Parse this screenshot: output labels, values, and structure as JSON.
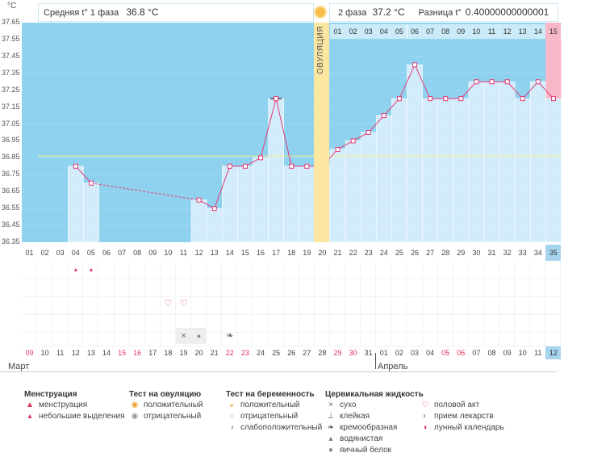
{
  "unit_label": "°C",
  "header": {
    "phase1_label": "Средняя t° 1 фаза",
    "phase1_value": "36.8 °C",
    "phase2_label": "2 фаза",
    "phase2_value": "37.2 °C",
    "diff_label": "Разница t°",
    "diff_value": "0.40000000000001 °C",
    "ovulation_label": "ОВУЛЯЦИЯ"
  },
  "chart_data": {
    "type": "line",
    "title": "Базальная температура",
    "ylabel": "°C",
    "ylim": [
      36.35,
      37.65
    ],
    "yticks": [
      "37.65",
      "37.55",
      "37.45",
      "37.35",
      "37.25",
      "37.15",
      "37.05",
      "36.95",
      "36.85",
      "36.75",
      "36.65",
      "36.55",
      "36.45",
      "36.35"
    ],
    "cycle_days": [
      "01",
      "02",
      "03",
      "04",
      "05",
      "06",
      "07",
      "08",
      "09",
      "10",
      "11",
      "12",
      "13",
      "14",
      "15",
      "16",
      "17",
      "18",
      "19",
      "20",
      "21",
      "22",
      "23",
      "24",
      "25",
      "26",
      "27",
      "28",
      "29",
      "30",
      "31",
      "32",
      "33",
      "34",
      "35"
    ],
    "temperatures": [
      null,
      null,
      null,
      36.8,
      36.7,
      null,
      null,
      null,
      null,
      null,
      null,
      36.6,
      36.55,
      36.8,
      36.8,
      36.85,
      37.2,
      36.8,
      36.8,
      36.8,
      36.9,
      36.95,
      37.0,
      37.1,
      37.2,
      37.4,
      37.2,
      37.2,
      37.2,
      37.3,
      37.3,
      37.3,
      37.2,
      37.3,
      37.2
    ],
    "cover_line": 36.86,
    "ovulation_day": 20,
    "phase2_day_numbers": [
      "01",
      "02",
      "03",
      "04",
      "05",
      "06",
      "07",
      "08",
      "09",
      "10",
      "11",
      "12",
      "13",
      "14",
      "15"
    ],
    "current_day": "35"
  },
  "calendar": {
    "dates": [
      "09",
      "10",
      "11",
      "12",
      "13",
      "14",
      "15",
      "16",
      "17",
      "18",
      "19",
      "20",
      "21",
      "22",
      "23",
      "24",
      "25",
      "26",
      "27",
      "28",
      "29",
      "30",
      "31",
      "01",
      "02",
      "03",
      "04",
      "05",
      "06",
      "07",
      "08",
      "09",
      "10",
      "11",
      "12"
    ],
    "weekend_indices": [
      0,
      6,
      7,
      13,
      14,
      20,
      21,
      27,
      28
    ],
    "months": [
      "Март",
      "Апрель"
    ]
  },
  "markers": {
    "menstruation_days": [
      4,
      5
    ],
    "intercourse_days": [
      10,
      11
    ],
    "dry_day": 11,
    "watery_day": 12,
    "creamy_day": 14
  },
  "legend": {
    "groups": [
      {
        "title": "Менструация",
        "items": [
          {
            "icon": "drop-large-icon",
            "label": "менструация"
          },
          {
            "icon": "drop-small-icon",
            "label": "небольшие выделения"
          }
        ]
      },
      {
        "title": "Тест на овуляцию",
        "items": [
          {
            "icon": "sun-positive-icon",
            "label": "положительный"
          },
          {
            "icon": "sun-negative-icon",
            "label": "отрицательный"
          }
        ]
      },
      {
        "title": "Тест на беременность",
        "items": [
          {
            "icon": "test-positive-icon",
            "label": "положительный"
          },
          {
            "icon": "test-negative-icon",
            "label": "отрицательный"
          },
          {
            "icon": "test-weak-icon",
            "label": "слабоположительный"
          }
        ]
      },
      {
        "title": "Цервикальная жидкость",
        "items": [
          {
            "icon": "dry-icon",
            "label": "сухо"
          },
          {
            "icon": "sticky-icon",
            "label": "клейкая"
          },
          {
            "icon": "creamy-icon",
            "label": "кремообразная"
          },
          {
            "icon": "watery-icon",
            "label": "водянистая"
          },
          {
            "icon": "eggwhite-icon",
            "label": "яичный белок"
          }
        ]
      },
      {
        "title": "",
        "items": [
          {
            "icon": "heart-icon",
            "label": "половой акт"
          },
          {
            "icon": "pill-icon",
            "label": "прием лекарств"
          },
          {
            "icon": "moon-icon",
            "label": "лунный календарь"
          }
        ]
      }
    ]
  },
  "colors": {
    "sky": "#8fd2ef",
    "bar": "#d3ecfb",
    "bar_edge": "#7cc0e8",
    "line": "#e23c76",
    "ovulation": "#fbe7a0",
    "current": "#f8b7c8",
    "cover": "#f5f08a"
  }
}
